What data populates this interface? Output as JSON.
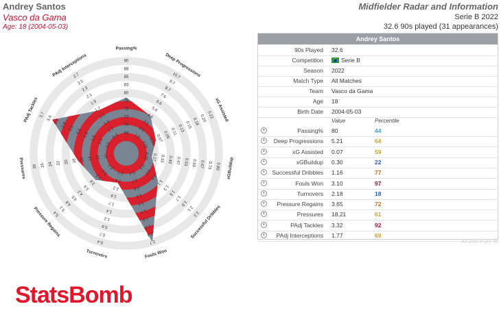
{
  "header": {
    "player_name": "Andrey Santos",
    "team": "Vasco da Gama",
    "age_text": "Age: 18 (2004-05-03)",
    "title": "Midfielder Radar and Information",
    "competition": "Serie B 2022",
    "appearances": "32.6 90s played (31 appearances)"
  },
  "panel": {
    "title": "Andrey Santos",
    "info": [
      {
        "label": "90s Played",
        "value": "32.6"
      },
      {
        "label": "Competition",
        "value": "Serie B",
        "flag": true
      },
      {
        "label": "Season",
        "value": "2022"
      },
      {
        "label": "Match Type",
        "value": "All Matches"
      },
      {
        "label": "Team",
        "value": "Vasco da Gama"
      },
      {
        "label": "Age",
        "value": "18"
      },
      {
        "label": "Birth Date",
        "value": "2004-05-03"
      }
    ],
    "col_value": "Value",
    "col_percentile": "Percentile",
    "metrics": [
      {
        "label": "Passing%",
        "value": "80",
        "percentile": "44",
        "color": "#3aa0c8"
      },
      {
        "label": "Deep Progressions",
        "value": "5.21",
        "percentile": "64",
        "color": "#c9a227"
      },
      {
        "label": "xG Assisted",
        "value": "0.07",
        "percentile": "59",
        "color": "#c9a227"
      },
      {
        "label": "xGBuildup",
        "value": "0.30",
        "percentile": "22",
        "color": "#2a5db0"
      },
      {
        "label": "Successful Dribbles",
        "value": "1.16",
        "percentile": "77",
        "color": "#d2691e"
      },
      {
        "label": "Fouls Won",
        "value": "3.10",
        "percentile": "97",
        "color": "#a0103a"
      },
      {
        "label": "Turnovers",
        "value": "2.18",
        "percentile": "18",
        "color": "#2a5db0"
      },
      {
        "label": "Pressure Regains",
        "value": "3.65",
        "percentile": "72",
        "color": "#d2691e"
      },
      {
        "label": "Pressures",
        "value": "18.21",
        "percentile": "61",
        "color": "#c9a227"
      },
      {
        "label": "PAdj Tackles",
        "value": "3.32",
        "percentile": "92",
        "color": "#a0103a"
      },
      {
        "label": "PAdj Interceptions",
        "value": "1.77",
        "percentile": "69",
        "color": "#c9a227"
      }
    ],
    "footnote": "All units in per 90"
  },
  "logo": "StatsBomb",
  "chart_data": {
    "type": "radar",
    "title": "Midfielder Radar and Information",
    "axes": [
      {
        "name": "Passing%",
        "ticks": [
          "90",
          "88",
          "85",
          "83",
          "80",
          "78",
          "75",
          "73",
          "70",
          "68"
        ],
        "value": 80
      },
      {
        "name": "Deep Progressions",
        "ticks": [
          "10.7",
          "9.7",
          "8.7",
          "7.6",
          "6.6",
          "5.6",
          "4.6",
          "3.5",
          "2.5",
          "1.5"
        ],
        "value": 5.21
      },
      {
        "name": "xG Assisted",
        "ticks": [
          "0.22",
          "0.20",
          "0.18",
          "0.15",
          "0.13",
          "0.11",
          "0.09",
          "0.07",
          "0.04",
          "0.02"
        ],
        "value": 0.07
      },
      {
        "name": "xGBuildup",
        "ticks": [
          "0.80",
          "0.73",
          "0.67",
          "0.60",
          "0.53",
          "0.47",
          "0.40",
          "0.33",
          "0.27",
          "0.20"
        ],
        "value": 0.3
      },
      {
        "name": "Successful Dribbles",
        "ticks": [
          "2.3",
          "2.1",
          "1.9",
          "1.7",
          "1.5",
          "1.3",
          "1.1",
          "0.9",
          "0.7",
          "0.5"
        ],
        "value": 1.16
      },
      {
        "name": "Fouls Won",
        "ticks": [
          "2.7",
          "2.4",
          "2.2",
          "1.9",
          "1.7",
          "1.4",
          "1.2",
          "0.9",
          "0.7",
          "0.4"
        ],
        "value": 3.1
      },
      {
        "name": "Turnovers",
        "ticks": [
          "0.4",
          "0.7",
          "0.9",
          "1.2",
          "1.4",
          "1.7",
          "1.9",
          "2.2",
          "2.4",
          "2.7"
        ],
        "value": 2.18
      },
      {
        "name": "Pressure Regains",
        "ticks": [
          "5.4",
          "5.1",
          "4.8",
          "4.5",
          "4.2",
          "3.9",
          "3.6",
          "3.3",
          "3.0",
          "2.7"
        ],
        "value": 3.65
      },
      {
        "name": "Pressures",
        "ticks": [
          "28",
          "26",
          "24",
          "22",
          "20",
          "18",
          "16",
          "14",
          "12",
          "10"
        ],
        "value": 18.21
      },
      {
        "name": "PAdj Tackles",
        "ticks": [
          "3.7",
          "3.4",
          "3.1",
          "2.8",
          "2.5",
          "2.2",
          "1.9",
          "1.6",
          "1.3",
          "1.0"
        ],
        "value": 3.32
      },
      {
        "name": "PAdj Interceptions",
        "ticks": [
          "2.7",
          "2.5",
          "2.3",
          "2.1",
          "1.9",
          "1.7",
          "1.5",
          "1.3",
          "1.1",
          "0.9"
        ],
        "value": 1.77
      }
    ],
    "fill_color": "#7a8593",
    "stripe_color": "#d9202d"
  }
}
